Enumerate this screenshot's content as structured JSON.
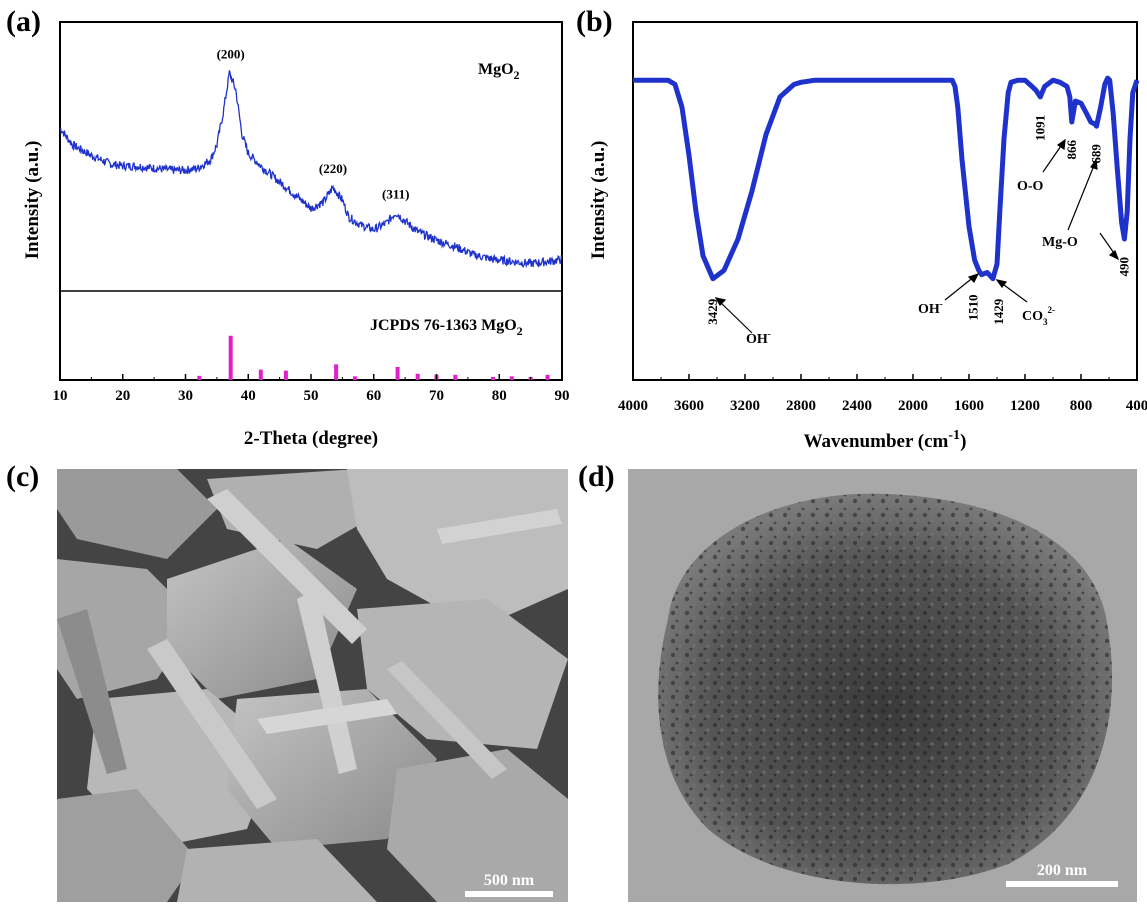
{
  "panels": {
    "a": {
      "label": "(a)"
    },
    "b": {
      "label": "(b)"
    },
    "c": {
      "label": "(c)",
      "scale_bar": "500 nm"
    },
    "d": {
      "label": "(d)",
      "scale_bar": "200 nm"
    }
  },
  "chart_data": [
    {
      "type": "line",
      "panel": "a",
      "xlabel": "2-Theta (degree)",
      "ylabel": "Intensity (a.u.)",
      "xlim": [
        10,
        90
      ],
      "xticks": [
        10,
        20,
        30,
        40,
        50,
        60,
        70,
        80,
        90
      ],
      "sample_label": "MgO",
      "sample_sub": "2",
      "reference_label": "JCPDS 76-1363 MgO",
      "reference_sub": "2",
      "line_color": "#1f33cc",
      "ref_color": "#e020c8",
      "pattern": {
        "x": [
          10,
          12,
          15,
          18,
          20,
          22,
          25,
          28,
          30,
          32,
          34,
          35,
          36,
          37,
          38,
          39,
          40,
          42,
          44,
          46,
          48,
          50,
          52,
          53.5,
          55,
          56,
          58,
          60,
          62,
          63.5,
          65,
          67,
          70,
          73,
          76,
          79,
          82,
          85,
          88,
          90
        ],
        "y": [
          0.68,
          0.6,
          0.55,
          0.51,
          0.5,
          0.5,
          0.49,
          0.48,
          0.48,
          0.49,
          0.53,
          0.6,
          0.75,
          0.94,
          0.86,
          0.65,
          0.56,
          0.5,
          0.45,
          0.4,
          0.35,
          0.3,
          0.33,
          0.4,
          0.34,
          0.26,
          0.22,
          0.2,
          0.23,
          0.28,
          0.24,
          0.19,
          0.15,
          0.12,
          0.08,
          0.06,
          0.05,
          0.04,
          0.05,
          0.06
        ]
      },
      "peaks": [
        {
          "label": "(200)",
          "x": 37.2,
          "y": 0.94
        },
        {
          "label": "(220)",
          "x": 53.5,
          "y": 0.4
        },
        {
          "label": "(311)",
          "x": 63.5,
          "y": 0.28
        }
      ],
      "reference_lines": {
        "x": [
          32.2,
          37.2,
          42.0,
          46.0,
          54.0,
          57.0,
          63.8,
          67.0,
          70.0,
          73.0,
          79.0,
          82.0,
          85.0,
          87.7
        ],
        "height": [
          0.08,
          0.85,
          0.2,
          0.18,
          0.3,
          0.07,
          0.25,
          0.12,
          0.1,
          0.1,
          0.06,
          0.07,
          0.06,
          0.1
        ]
      }
    },
    {
      "type": "line",
      "panel": "b",
      "xlabel": "Wavenumber (cm",
      "xlabel_sup": "-1",
      "xlabel_end": ")",
      "ylabel": "Intensity (a.u.)",
      "xlim": [
        4000,
        400
      ],
      "xticks": [
        4000,
        3600,
        3200,
        2800,
        2400,
        2000,
        1600,
        1200,
        800,
        400
      ],
      "line_color": "#1f33cc",
      "spectrum": {
        "x": [
          4000,
          3750,
          3700,
          3650,
          3600,
          3550,
          3500,
          3429,
          3350,
          3250,
          3150,
          3050,
          2950,
          2850,
          2800,
          2700,
          2400,
          2000,
          1800,
          1720,
          1700,
          1680,
          1650,
          1600,
          1560,
          1530,
          1510,
          1470,
          1429,
          1400,
          1380,
          1350,
          1320,
          1300,
          1250,
          1200,
          1150,
          1120,
          1091,
          1060,
          1000,
          950,
          900,
          880,
          866,
          840,
          800,
          760,
          730,
          700,
          689,
          660,
          630,
          610,
          595,
          570,
          540,
          510,
          490,
          470,
          450,
          430,
          400
        ],
        "y": [
          0.98,
          0.98,
          0.96,
          0.85,
          0.62,
          0.35,
          0.14,
          0.03,
          0.07,
          0.22,
          0.45,
          0.72,
          0.9,
          0.96,
          0.97,
          0.98,
          0.98,
          0.98,
          0.98,
          0.98,
          0.95,
          0.85,
          0.6,
          0.28,
          0.12,
          0.07,
          0.05,
          0.06,
          0.03,
          0.1,
          0.35,
          0.7,
          0.92,
          0.97,
          0.98,
          0.98,
          0.95,
          0.93,
          0.9,
          0.95,
          0.98,
          0.97,
          0.95,
          0.9,
          0.78,
          0.88,
          0.87,
          0.82,
          0.78,
          0.77,
          0.76,
          0.85,
          0.96,
          0.99,
          0.98,
          0.82,
          0.55,
          0.3,
          0.22,
          0.35,
          0.7,
          0.92,
          0.98
        ]
      },
      "peak_labels": [
        {
          "label": "3429",
          "x": 3429,
          "y": 0.03
        },
        {
          "label": "1510",
          "x": 1510,
          "y": 0.05
        },
        {
          "label": "1429",
          "x": 1429,
          "y": 0.03
        },
        {
          "label": "1091",
          "x": 1091,
          "y": 0.9
        },
        {
          "label": "866",
          "x": 866,
          "y": 0.78
        },
        {
          "label": "689",
          "x": 689,
          "y": 0.76
        },
        {
          "label": "490",
          "x": 490,
          "y": 0.22
        }
      ],
      "assignments": {
        "oh_right": "OH",
        "oh_left": "OH",
        "oh_sup": "-",
        "co3": "CO",
        "co3_sub": "3",
        "co3_sup": "2-",
        "oo": "O-O",
        "mgo": "Mg-O"
      }
    }
  ]
}
